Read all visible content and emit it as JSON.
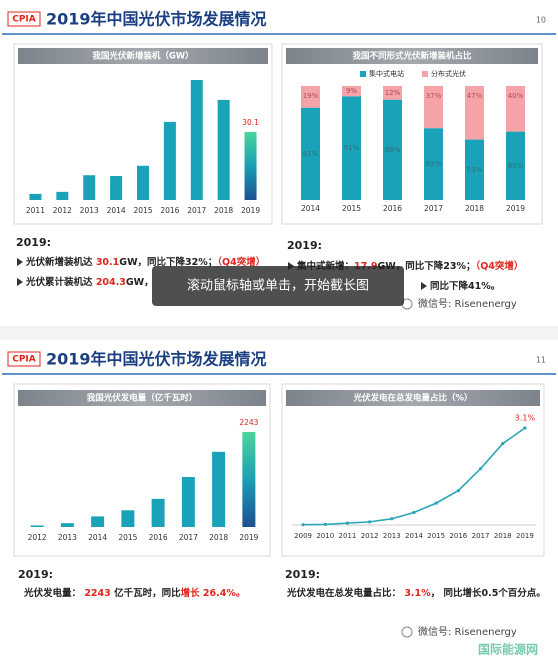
{
  "screens": [
    {
      "logo": "CPIA",
      "title": "2019年中国光伏市场发展情况",
      "page": "10",
      "summary_left": {
        "heading": "2019:",
        "lines": [
          [
            {
              "text": "光伏新增装机达 "
            },
            {
              "text": "30.1",
              "em": true
            },
            {
              "text": "GW，同比下降32%；"
            },
            {
              "text": "（Q4突增）",
              "em": true
            }
          ],
          [
            {
              "text": "光伏累计装机达 "
            },
            {
              "text": "204.3",
              "em": true
            },
            {
              "text": "GW，"
            }
          ]
        ]
      },
      "summary_right": {
        "heading": "2019:",
        "lines": [
          [
            {
              "text": "集中式新增："
            },
            {
              "text": "17.9",
              "em": true
            },
            {
              "text": "GW，同比下降23%；"
            },
            {
              "text": "（Q4突增）",
              "em": true
            }
          ],
          [
            {
              "text": "同比下降41%。"
            }
          ]
        ]
      },
      "watermark": "微信号: Risenenergy"
    },
    {
      "logo": "CPIA",
      "title": "2019年中国光伏市场发展情况",
      "page": "11",
      "summary_left": {
        "heading": "2019:",
        "lines": [
          [
            {
              "text": "光伏发电量： "
            },
            {
              "text": "2243",
              "em": true
            },
            {
              "text": " 亿千瓦时，同比"
            },
            {
              "text": "增长 26.4%。",
              "em": true
            }
          ]
        ]
      },
      "summary_right": {
        "heading": "2019:",
        "lines": [
          [
            {
              "text": "光伏发电在总发电量占比： "
            },
            {
              "text": "3.1%",
              "em": true
            },
            {
              "text": "， 同比增长0.5个百分点。"
            }
          ]
        ]
      },
      "watermark": "微信号: Risenenergy"
    }
  ],
  "overlay": "滚动鼠标轴或单击，开始截长图",
  "footer_logo": "国际能源网",
  "chart_data": [
    {
      "type": "bar",
      "title": "我国光伏新增装机（GW）",
      "categories": [
        "2011",
        "2012",
        "2013",
        "2014",
        "2015",
        "2016",
        "2017",
        "2018",
        "2019"
      ],
      "values": [
        2.7,
        3.6,
        10.95,
        10.6,
        15.13,
        34.54,
        53.06,
        44.26,
        30.1
      ],
      "value_labels": [
        null,
        null,
        null,
        null,
        null,
        null,
        null,
        null,
        "30.1"
      ],
      "color": "#1aa3b8",
      "last_bar_colors": [
        "#49d69b",
        "#1b9fb5",
        "#1d4f8f"
      ],
      "label_color": "#e0261c"
    },
    {
      "type": "stacked_bar",
      "title": "我国不同形式光伏新增装机占比",
      "categories": [
        "2014",
        "2015",
        "2016",
        "2017",
        "2018",
        "2019"
      ],
      "series": [
        {
          "name": "集中式电站",
          "color": "#1aa3b8",
          "values": [
            81,
            91,
            88,
            63,
            53,
            60
          ],
          "value_labels": [
            "81%",
            "91%",
            "88%",
            "63%",
            "53%",
            "60%"
          ]
        },
        {
          "name": "分布式光伏",
          "color": "#f4a3a9",
          "values": [
            19,
            9,
            12,
            37,
            47,
            40
          ],
          "value_labels": [
            "19%",
            "9%",
            "12%",
            "37%",
            "47%",
            "40%"
          ]
        }
      ],
      "legend": "top"
    },
    {
      "type": "bar",
      "title": "我国光伏发电量（亿千瓦时）",
      "categories": [
        "2012",
        "2013",
        "2014",
        "2015",
        "2016",
        "2017",
        "2018",
        "2019"
      ],
      "values": [
        36,
        90,
        250,
        395,
        665,
        1180,
        1775,
        2243
      ],
      "value_labels": [
        null,
        null,
        null,
        null,
        null,
        null,
        null,
        "2243"
      ],
      "color": "#1aa3b8",
      "last_bar_colors": [
        "#49d69b",
        "#1b9fb5",
        "#1d4f8f"
      ],
      "label_color": "#e0261c"
    },
    {
      "type": "line",
      "title": "光伏发电在总发电量占比（%）",
      "categories": [
        "2009",
        "2010",
        "2011",
        "2012",
        "2013",
        "2014",
        "2015",
        "2016",
        "2017",
        "2018",
        "2019"
      ],
      "values": [
        0.01,
        0.02,
        0.06,
        0.1,
        0.2,
        0.4,
        0.7,
        1.1,
        1.8,
        2.6,
        3.1
      ],
      "value_labels": [
        null,
        null,
        null,
        null,
        null,
        null,
        null,
        null,
        null,
        null,
        "3.1%"
      ],
      "color": "#2aa6b8",
      "label_color": "#e0261c"
    }
  ]
}
